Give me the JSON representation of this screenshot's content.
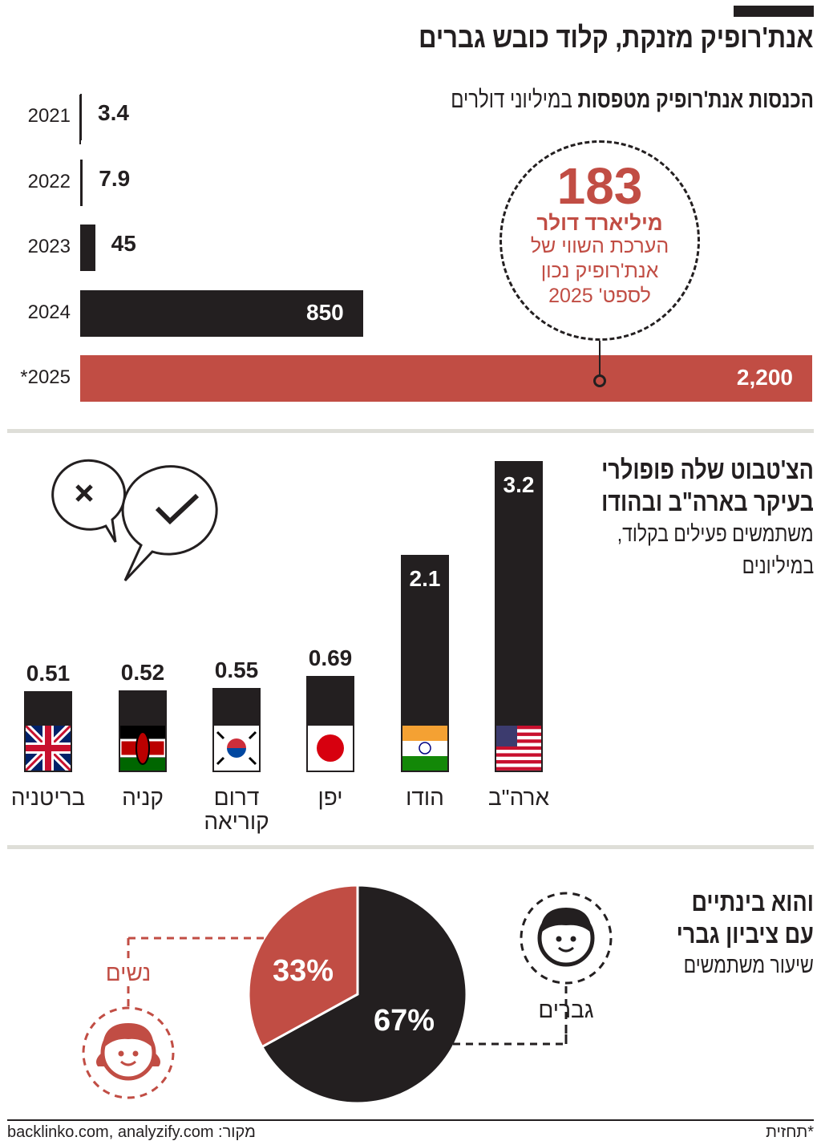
{
  "header": {
    "title": "אנת'רופיק מזנקת, קלוד כובש גברים"
  },
  "revenue": {
    "title_bold": "הכנסות אנת'רופיק מטפסות",
    "title_unit": " במיליוני דולרים",
    "callout": {
      "value": "183",
      "unit": "מיליארד דולר",
      "description": "הערכת השווי של אנת'רופיק נכון לספט' 2025"
    }
  },
  "users": {
    "title_line1": "הצ'טבוט שלה פופולרי",
    "title_line2": "בעיקר בארה\"ב ובהודו",
    "subtitle_line1": "משתמשים פעילים בקלוד,",
    "subtitle_line2": "במיליונים"
  },
  "gender": {
    "title_line1": "והוא בינתיים",
    "title_line2": "עם ציביון גברי",
    "subtitle": "שיעור משתמשים",
    "men_label": "גברים",
    "women_label": "נשים"
  },
  "footer": {
    "source": "מקור: backlinko.com, analyzify.com",
    "note": "*תחזית"
  },
  "colors": {
    "dark": "#231f20",
    "accent": "#c14d44",
    "divider": "#deded8"
  },
  "chart_data": [
    {
      "type": "bar",
      "orientation": "horizontal",
      "categories": [
        "2021",
        "2022",
        "2023",
        "2024",
        "*2025"
      ],
      "values": [
        3.4,
        7.9,
        45,
        850,
        2200
      ],
      "labels": [
        "3.4",
        "7.9",
        "45",
        "850",
        "2,200"
      ],
      "highlight": "*2025"
    },
    {
      "type": "bar",
      "categories": [
        "ארה\"ב",
        "הודו",
        "יפן",
        "דרום קוריאה",
        "קניה",
        "בריטניה"
      ],
      "values": [
        3.2,
        2.1,
        0.69,
        0.55,
        0.52,
        0.51
      ],
      "labels": [
        "3.2",
        "2.1",
        "0.69",
        "0.55",
        "0.52",
        "0.51"
      ],
      "flags": [
        "usa-flag",
        "india-flag",
        "japan-flag",
        "south-korea-flag",
        "kenya-flag",
        "uk-flag"
      ]
    },
    {
      "type": "pie",
      "slices": [
        {
          "name": "גברים",
          "value": 67,
          "label": "67%"
        },
        {
          "name": "נשים",
          "value": 33,
          "label": "33%"
        }
      ]
    }
  ]
}
